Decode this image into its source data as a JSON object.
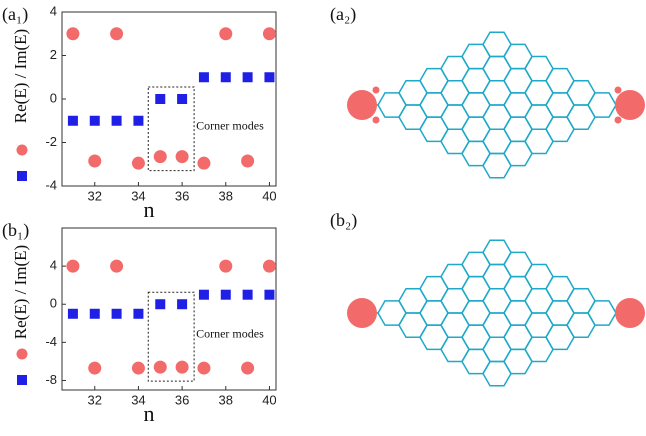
{
  "chart_data": [
    {
      "type": "scatter",
      "panel_label": "(a₁)",
      "ylabel": "Re(E) / Im(E)",
      "xlabel": "n",
      "annotation": "Corner modes",
      "x": [
        31,
        32,
        33,
        34,
        35,
        36,
        37,
        38,
        39,
        40
      ],
      "series": [
        {
          "marker": "square",
          "color": "#1f1fe6",
          "values": [
            -1,
            -1,
            -1,
            -1,
            0,
            0,
            1,
            1,
            1,
            1
          ]
        },
        {
          "marker": "circle",
          "color": "#f26a6a",
          "values": [
            3,
            -2.85,
            3,
            -2.95,
            -2.65,
            -2.65,
            -2.95,
            3,
            -2.85,
            3
          ]
        }
      ],
      "xlim": [
        30.5,
        40.3
      ],
      "xticks": [
        32,
        34,
        36,
        38,
        40
      ],
      "ylim": [
        -4,
        4
      ],
      "yticks": [
        -4,
        -2,
        0,
        2,
        4
      ]
    },
    {
      "type": "scatter",
      "panel_label": "(b₁)",
      "ylabel": "Re(E) / Im(E)",
      "xlabel": "n",
      "annotation": "Corner modes",
      "x": [
        31,
        32,
        33,
        34,
        35,
        36,
        37,
        38,
        39,
        40
      ],
      "series": [
        {
          "marker": "square",
          "color": "#1f1fe6",
          "values": [
            -1,
            -1,
            -1,
            -1,
            0,
            0,
            1,
            1,
            1,
            1
          ]
        },
        {
          "marker": "circle",
          "color": "#f26a6a",
          "values": [
            4,
            -6.7,
            4,
            -6.7,
            -6.6,
            -6.6,
            -6.7,
            4,
            -6.7,
            4
          ]
        }
      ],
      "xlim": [
        30.5,
        40.3
      ],
      "xticks": [
        32,
        34,
        36,
        38,
        40
      ],
      "ylim": [
        -9,
        8
      ],
      "yticks": [
        -8,
        -4,
        0,
        4
      ]
    }
  ],
  "diagrams": [
    {
      "label": "(a₂)"
    },
    {
      "label": "(b₂)"
    }
  ]
}
